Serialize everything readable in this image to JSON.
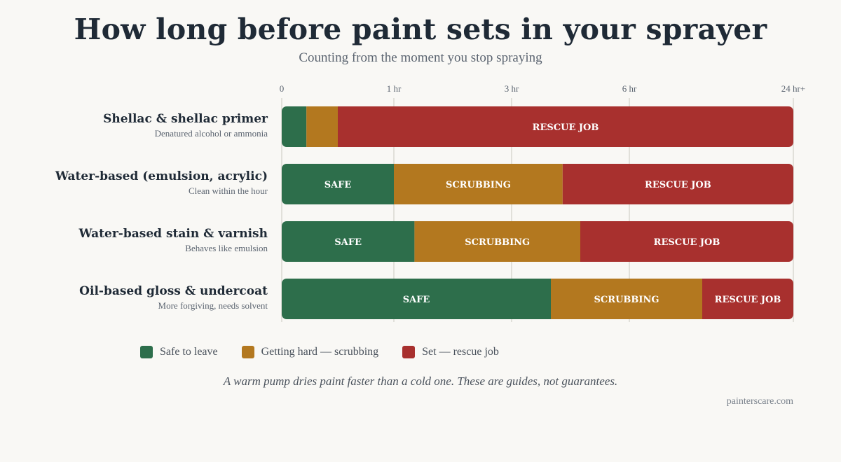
{
  "title": "How long before paint sets in your sprayer",
  "subtitle": "Counting from the moment you stop spraying",
  "chart_data": {
    "type": "bar",
    "orientation": "horizontal-stacked",
    "x_axis": {
      "ticks": [
        {
          "label": "0",
          "hours": 0
        },
        {
          "label": "1 hr",
          "hours": 1
        },
        {
          "label": "3 hr",
          "hours": 3
        },
        {
          "label": "6 hr",
          "hours": 6
        },
        {
          "label": "24 hr+",
          "hours": 24
        }
      ],
      "scale": "non-linear (breakpoints at 0, 1, 3, 6, 24 hours)"
    },
    "series_order": [
      "safe",
      "scrubbing",
      "rescue"
    ],
    "segment_labels": {
      "safe": "SAFE",
      "scrubbing": "SCRUBBING",
      "rescue": "RESCUE JOB"
    },
    "rows": [
      {
        "name": "Shellac & shellac primer",
        "note": "Denatured alcohol or ammonia",
        "safe_until_hours": 0.22,
        "scrubbing_until_hours": 0.5,
        "show_labels": {
          "safe": false,
          "scrubbing": false,
          "rescue": true
        }
      },
      {
        "name": "Water-based (emulsion, acrylic)",
        "note": "Clean within the hour",
        "safe_until_hours": 1,
        "scrubbing_until_hours": 4.3,
        "show_labels": {
          "safe": true,
          "scrubbing": true,
          "rescue": true
        }
      },
      {
        "name": "Water-based stain & varnish",
        "note": "Behaves like emulsion",
        "safe_until_hours": 1.35,
        "scrubbing_until_hours": 4.75,
        "show_labels": {
          "safe": true,
          "scrubbing": true,
          "rescue": true
        }
      },
      {
        "name": "Oil-based gloss & undercoat",
        "note": "More forgiving, needs solvent",
        "safe_until_hours": 4,
        "scrubbing_until_hours": 14,
        "show_labels": {
          "safe": true,
          "scrubbing": true,
          "rescue": true
        }
      }
    ],
    "legend": [
      {
        "key": "safe",
        "label": "Safe to leave",
        "color": "#2d6e4b"
      },
      {
        "key": "scrubbing",
        "label": "Getting hard — scrubbing",
        "color": "#b3781f"
      },
      {
        "key": "rescue",
        "label": "Set — rescue job",
        "color": "#a8302e"
      }
    ],
    "grid": true,
    "legend_position": "bottom"
  },
  "footnote": "A warm pump dries paint faster than a cold one. These are guides, not guarantees.",
  "credit": "painterscare.com"
}
